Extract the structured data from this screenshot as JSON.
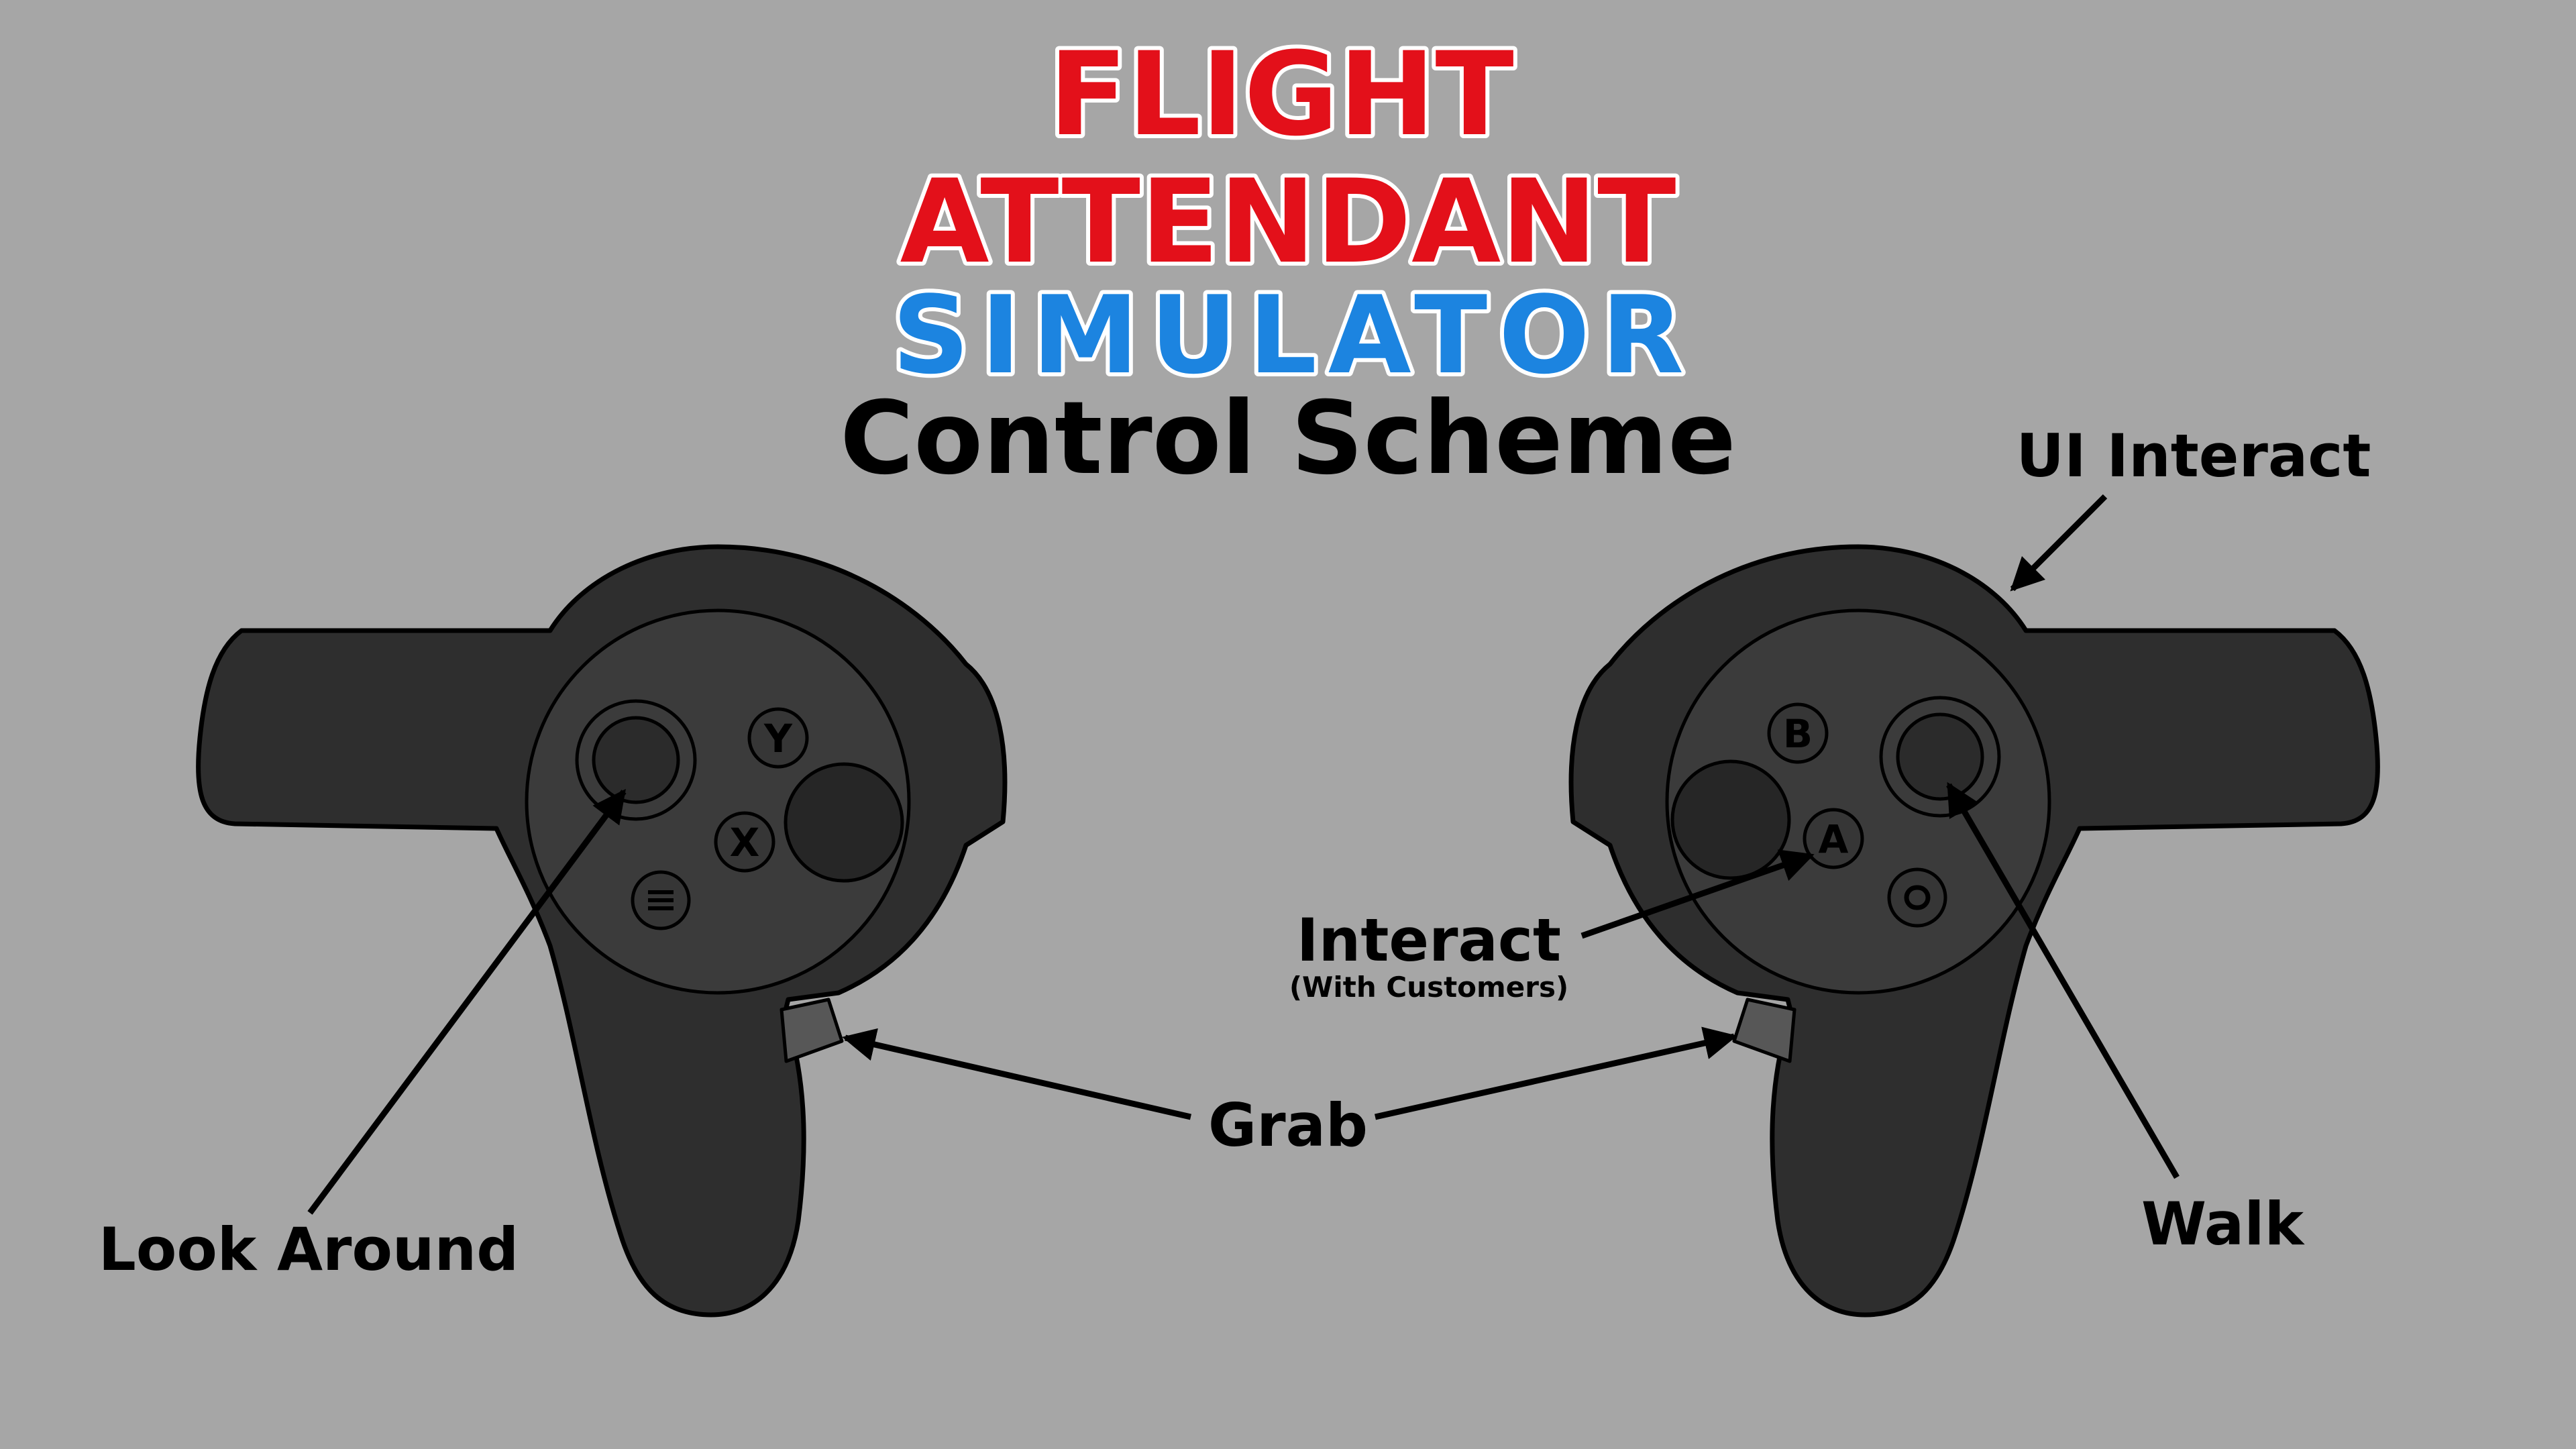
{
  "title": {
    "line1": "FLIGHT",
    "line2": "ATTENDANT",
    "line3": "SIMULATOR",
    "subtitle": "Control Scheme"
  },
  "colors": {
    "background": "#a6a6a6",
    "title_red": "#e3101a",
    "title_blue": "#1c84e0",
    "controller_body": "#2e2e2e"
  },
  "left_controller": {
    "buttons": {
      "y": "Y",
      "x": "X"
    },
    "icons": [
      "thumbstick-icon",
      "menu-button-icon",
      "trigger-icon"
    ]
  },
  "right_controller": {
    "buttons": {
      "b": "B",
      "a": "A"
    },
    "icons": [
      "thumbstick-icon",
      "oculus-button-icon",
      "trigger-icon"
    ]
  },
  "labels": {
    "look_around": "Look Around",
    "grab": "Grab",
    "interact": "Interact",
    "interact_note": "(With Customers)",
    "ui_interact": "UI Interact",
    "walk": "Walk"
  }
}
